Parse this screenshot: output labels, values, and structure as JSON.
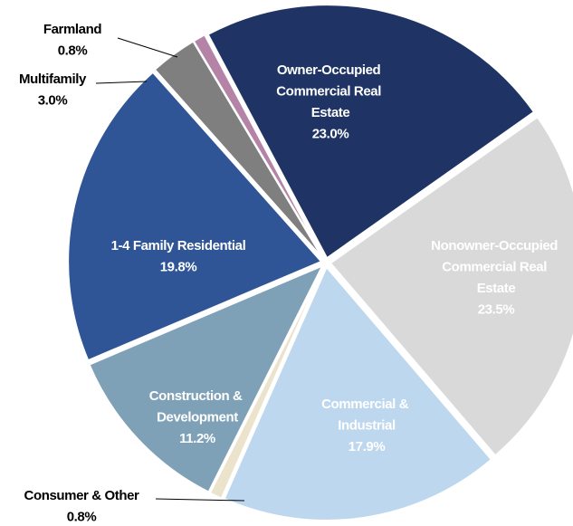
{
  "chart_data": {
    "type": "pie",
    "categories": [
      "Owner-Occupied Commercial Real Estate",
      "Nonowner-Occupied Commercial Real Estate",
      "Commercial & Industrial",
      "Consumer & Other",
      "Construction & Development",
      "1-4 Family Residential",
      "Multifamily",
      "Farmland"
    ],
    "values": [
      23.0,
      23.5,
      17.9,
      0.8,
      11.2,
      19.8,
      3.0,
      0.8
    ],
    "value_labels": [
      "23.0%",
      "23.5%",
      "17.9%",
      "0.8%",
      "11.2%",
      "19.8%",
      "3.0%",
      "0.8%"
    ],
    "colors": [
      "#1f3464",
      "#d9d9d9",
      "#bdd7ee",
      "#ebe3cc",
      "#7ea1b8",
      "#2f5597",
      "#7f7f7f",
      "#b483a6"
    ]
  }
}
